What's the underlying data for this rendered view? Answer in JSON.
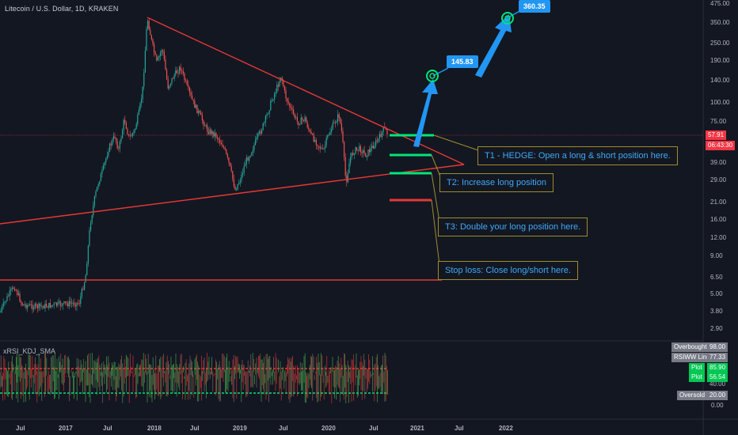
{
  "header": {
    "title": "Litecoin / U.S. Dollar, 1D, KRAKEN"
  },
  "indicator": {
    "name": "xRSI_KDJ_SMA"
  },
  "price_axis": {
    "ticks": [
      "475.00",
      "350.00",
      "250.00",
      "190.00",
      "140.00",
      "100.00",
      "75.00",
      "39.00",
      "29.00",
      "21.00",
      "16.00",
      "12.00",
      "9.00",
      "6.50",
      "5.00",
      "3.80",
      "2.90"
    ],
    "current_price": "57.91",
    "countdown": "06:43:30",
    "current_price_color": "#f23645"
  },
  "indicator_axis": {
    "ticks": [
      "40.00",
      "0.00"
    ],
    "badges": [
      {
        "label": "Overbought",
        "value": "98.00",
        "color": "#787b86"
      },
      {
        "label": "RSIWW Line",
        "value": "77.33",
        "color": "#787b86"
      },
      {
        "label": "Plot",
        "value": "85.90",
        "color": "#00c853"
      },
      {
        "label": "Plot",
        "value": "56.54",
        "color": "#00c853"
      },
      {
        "label": "Oversold",
        "value": "20.00",
        "color": "#787b86"
      }
    ]
  },
  "time_axis": {
    "labels": [
      "Jul",
      "2017",
      "Jul",
      "2018",
      "Jul",
      "2019",
      "Jul",
      "2020",
      "Jul",
      "2021",
      "Jul",
      "2022"
    ]
  },
  "annotations": {
    "targets": [
      {
        "label": "145.83"
      },
      {
        "label": "360.35"
      }
    ],
    "callouts": [
      {
        "text": "T1 - HEDGE: Open a long & short position here."
      },
      {
        "text": "T2: Increase long position"
      },
      {
        "text": "T3: Double your long position here."
      },
      {
        "text": "Stop loss: Close long/short here."
      }
    ]
  },
  "colors": {
    "background": "#131722",
    "trendline": "#e53935",
    "arrow": "#2196f3",
    "target_green": "#00e676",
    "callout_border": "#a08c2c",
    "callout_text": "#3fa9f5",
    "candle_up": "#26a69a",
    "candle_down": "#ef5350"
  }
}
